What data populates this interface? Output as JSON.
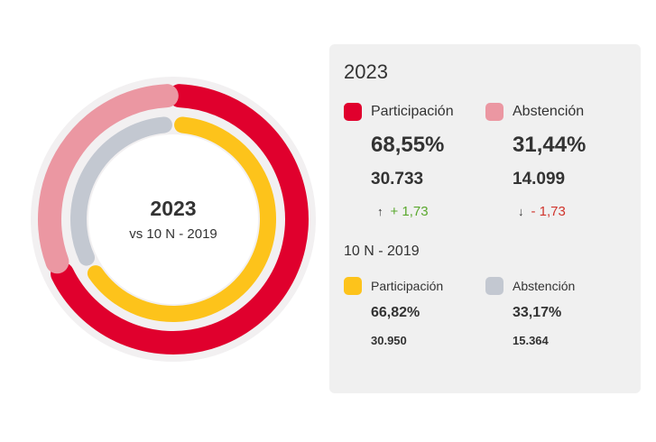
{
  "chart_data": {
    "type": "pie",
    "center": {
      "title": "2023",
      "subtitle": "vs 10 N - 2019"
    },
    "series": [
      {
        "name": "2023",
        "slices": [
          {
            "label": "Participación",
            "value": 68.55,
            "color": "#e0002d"
          },
          {
            "label": "Abstención",
            "value": 31.44,
            "color": "#eb97a2"
          }
        ]
      },
      {
        "name": "10 N - 2019",
        "slices": [
          {
            "label": "Participación",
            "value": 66.82,
            "color": "#fdc31b"
          },
          {
            "label": "Abstención",
            "value": 33.17,
            "color": "#c3c8d1"
          }
        ]
      }
    ]
  },
  "panel": {
    "title": "2023",
    "current": {
      "participacion": {
        "label": "Participación",
        "percent": "68,55%",
        "votes": "30.733",
        "diff_arrow": "↑",
        "diff": "+ 1,73",
        "color": "#e0002d"
      },
      "abstencion": {
        "label": "Abstención",
        "percent": "31,44%",
        "votes": "14.099",
        "diff_arrow": "↓",
        "diff": "- 1,73",
        "color": "#eb97a2"
      }
    },
    "previous_title": "10 N - 2019",
    "previous": {
      "participacion": {
        "label": "Participación",
        "percent": "66,82%",
        "votes": "30.950",
        "color": "#fdc31b"
      },
      "abstencion": {
        "label": "Abstención",
        "percent": "33,17%",
        "votes": "15.364",
        "color": "#c3c8d1"
      }
    }
  }
}
